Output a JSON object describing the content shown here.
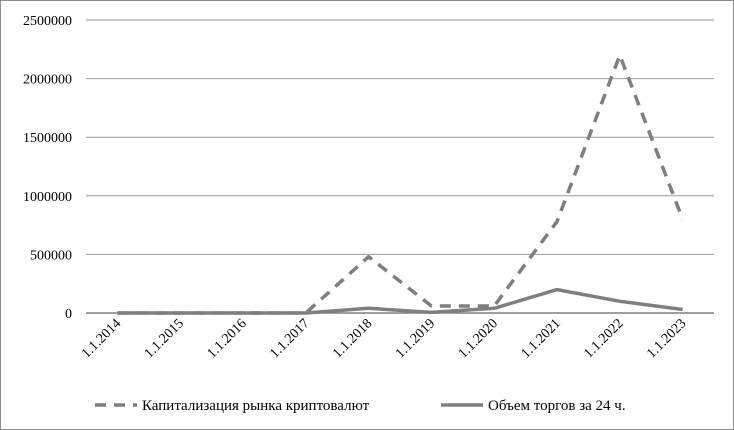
{
  "chart_data": {
    "type": "line",
    "title": "",
    "xlabel": "",
    "ylabel": "",
    "categories": [
      "1.1.2014",
      "1.1.2015",
      "1.1.2016",
      "1.1.2017",
      "1.1.2018",
      "1.1.2019",
      "1.1.2020",
      "1.1.2021",
      "1.1.2022",
      "1.1.2023"
    ],
    "ylim": [
      0,
      2500000
    ],
    "yticks": [
      "0",
      "500000",
      "1000000",
      "1500000",
      "2000000",
      "2500000"
    ],
    "grid": true,
    "legend_position": "bottom",
    "series": [
      {
        "name": "Капитализация рынка криптовалют",
        "style": "dashed",
        "color": "#7f7f7f",
        "values": [
          0,
          0,
          0,
          0,
          480000,
          60000,
          60000,
          780000,
          2200000,
          800000
        ]
      },
      {
        "name": "Объем торгов за 24 ч.",
        "style": "solid",
        "color": "#7f7f7f",
        "values": [
          0,
          0,
          0,
          0,
          40000,
          5000,
          40000,
          200000,
          100000,
          30000
        ]
      }
    ]
  }
}
